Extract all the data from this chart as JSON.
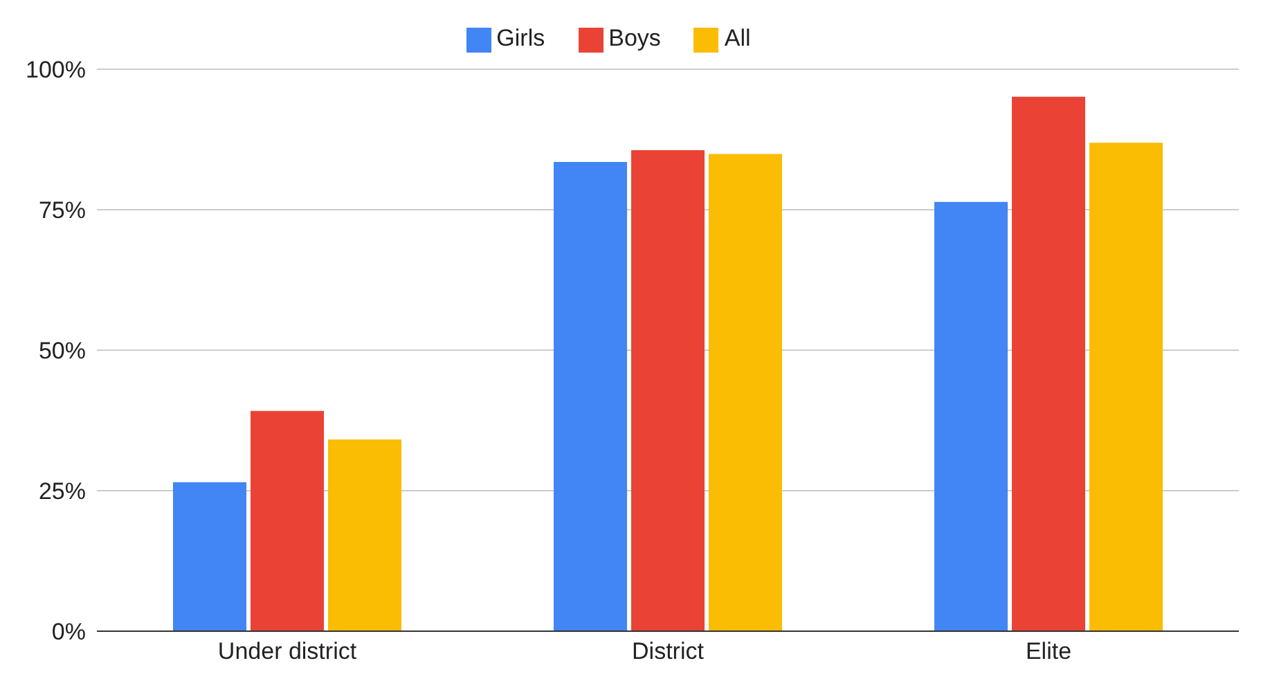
{
  "chart_data": {
    "type": "bar",
    "categories": [
      "Under district",
      "District",
      "Elite"
    ],
    "series": [
      {
        "name": "Girls",
        "color": "#4285f4",
        "values": [
          26.5,
          83.5,
          76.4
        ]
      },
      {
        "name": "Boys",
        "color": "#ea4335",
        "values": [
          39.2,
          85.6,
          95.1
        ]
      },
      {
        "name": "All",
        "color": "#fbbc04",
        "values": [
          34.1,
          84.9,
          86.9
        ]
      }
    ],
    "ylim": [
      0,
      100
    ],
    "yticks": [
      {
        "value": 0,
        "label": "0%"
      },
      {
        "value": 25,
        "label": "25%"
      },
      {
        "value": 50,
        "label": "50%"
      },
      {
        "value": 75,
        "label": "75%"
      },
      {
        "value": 100,
        "label": "100%"
      }
    ],
    "grid": "y",
    "legend": "top"
  }
}
